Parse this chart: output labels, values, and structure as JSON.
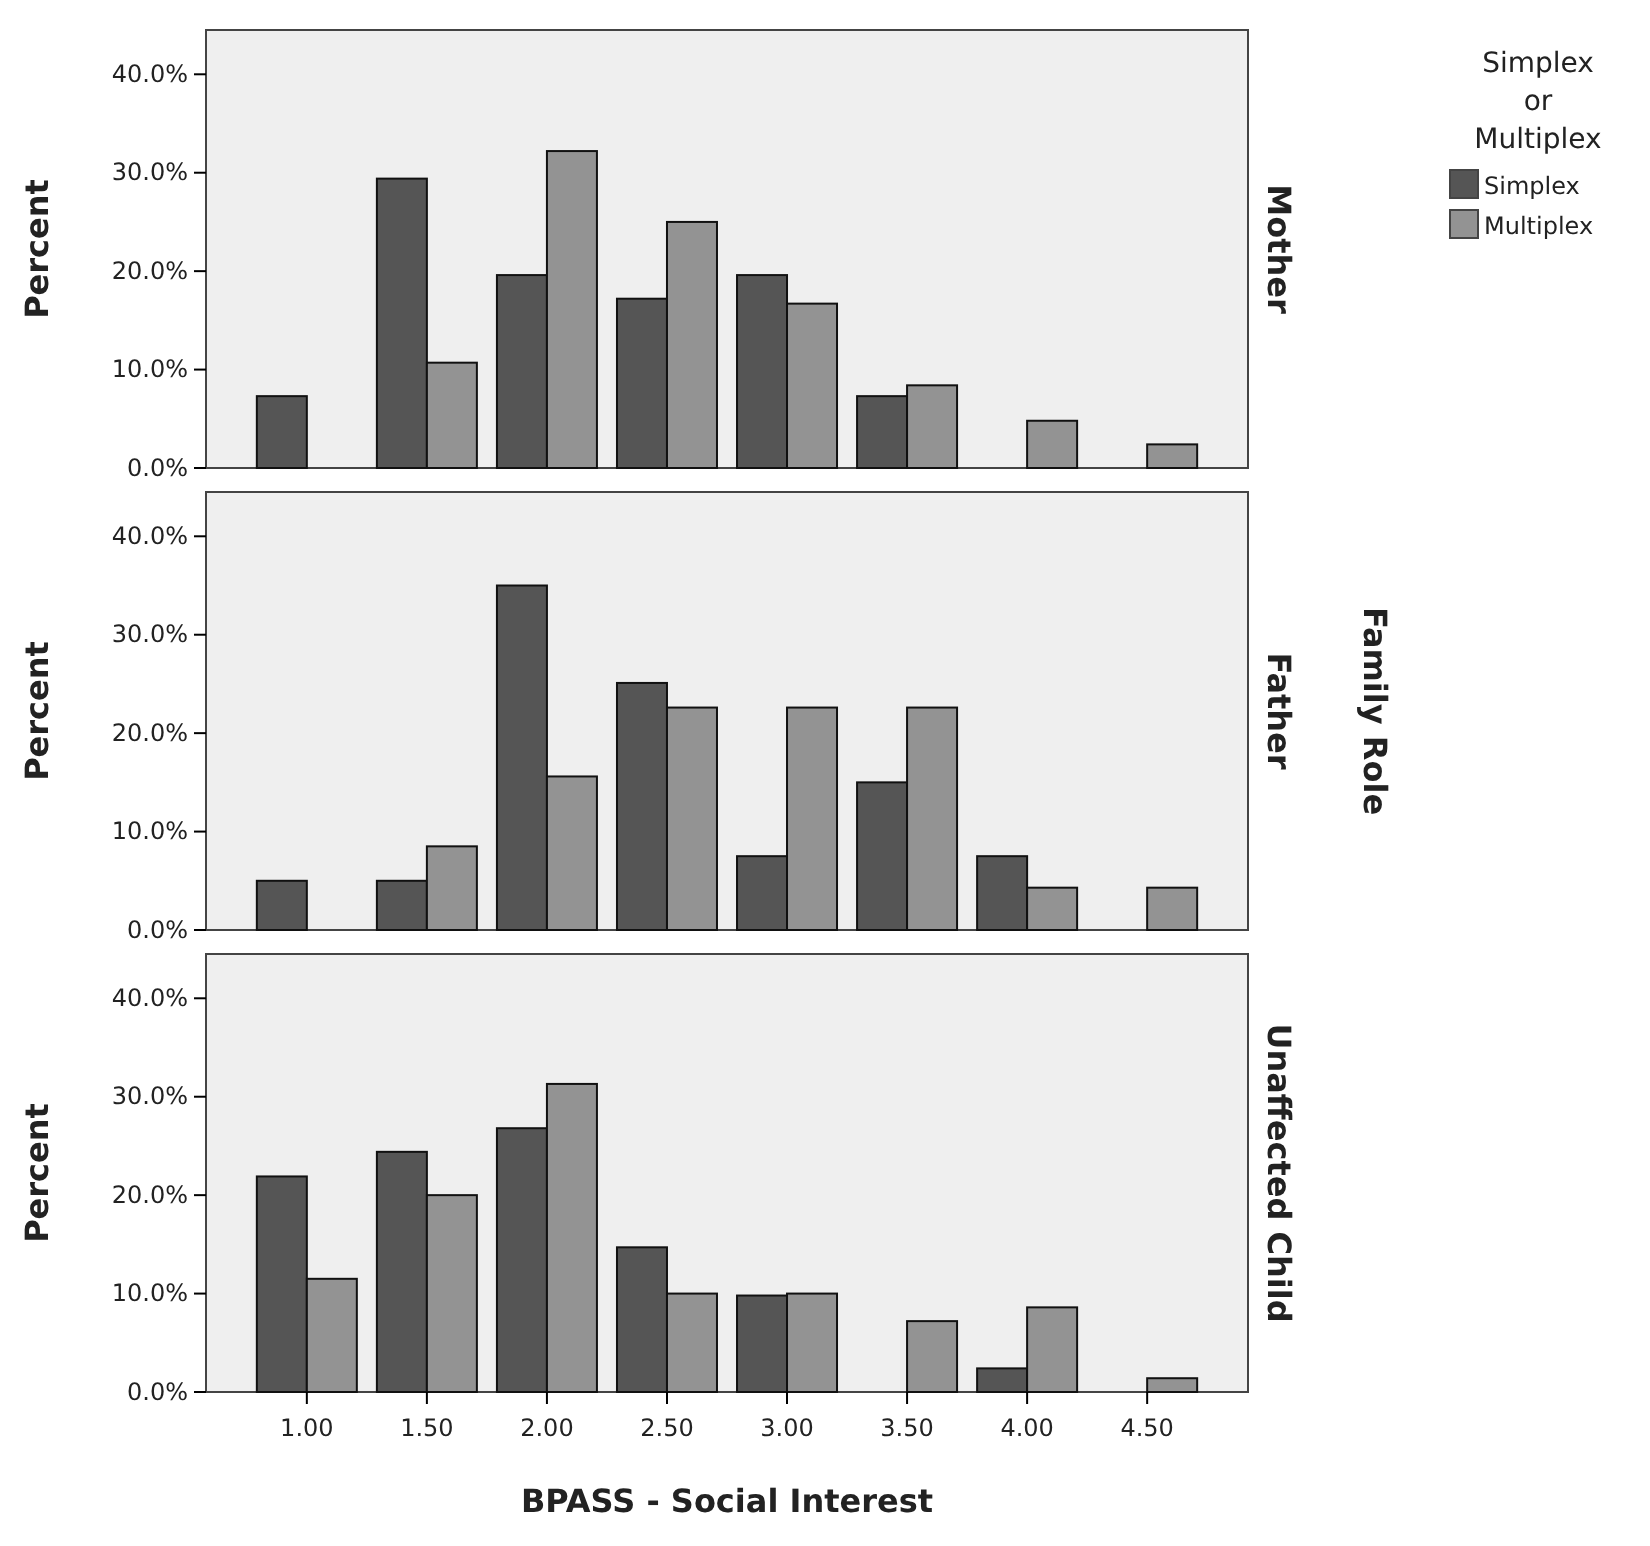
{
  "chart_data": [
    {
      "type": "bar",
      "title": "Mother",
      "ylabel": "Percent",
      "legend_title": "Simplex or Multiplex",
      "legend": "right",
      "tick_labels": "y",
      "categories": [
        "1.00",
        "1.50",
        "2.00",
        "2.50",
        "3.00",
        "3.50",
        "4.00",
        "4.50"
      ],
      "ylim": [
        0,
        44.5
      ],
      "yticks": [
        {
          "value": 0,
          "label": "0.0%"
        },
        {
          "value": 10,
          "label": "10.0%"
        },
        {
          "value": 20,
          "label": "20.0%"
        },
        {
          "value": 30,
          "label": "30.0%"
        },
        {
          "value": 40,
          "label": "40.0%"
        }
      ],
      "series": [
        {
          "name": "Simplex",
          "color": "#555555",
          "values": [
            7.3,
            29.4,
            19.6,
            17.2,
            19.6,
            7.3,
            0,
            0
          ]
        },
        {
          "name": "Multiplex",
          "color": "#939393",
          "values": [
            0,
            10.7,
            32.2,
            25.0,
            16.7,
            8.4,
            4.8,
            2.4
          ]
        }
      ]
    },
    {
      "type": "bar",
      "title": "Father",
      "ylabel": "Percent",
      "y2label": "Family Role",
      "tick_labels": "y",
      "categories": [
        "1.00",
        "1.50",
        "2.00",
        "2.50",
        "3.00",
        "3.50",
        "4.00",
        "4.50"
      ],
      "ylim": [
        0,
        44.5
      ],
      "yticks": [
        {
          "value": 0,
          "label": "0.0%"
        },
        {
          "value": 10,
          "label": "10.0%"
        },
        {
          "value": 20,
          "label": "20.0%"
        },
        {
          "value": 30,
          "label": "30.0%"
        },
        {
          "value": 40,
          "label": "40.0%"
        }
      ],
      "series": [
        {
          "color": "#555555",
          "values": [
            5.0,
            5.0,
            35.0,
            25.1,
            7.5,
            15.0,
            7.5,
            0
          ]
        },
        {
          "color": "#939393",
          "values": [
            0,
            8.5,
            15.6,
            22.6,
            22.6,
            22.6,
            4.3,
            4.3
          ]
        }
      ]
    },
    {
      "type": "bar",
      "title": "Unaffected Child",
      "ylabel": "Percent",
      "xlabel": "BPASS - Social Interest",
      "categories": [
        "1.00",
        "1.50",
        "2.00",
        "2.50",
        "3.00",
        "3.50",
        "4.00",
        "4.50"
      ],
      "ylim": [
        0,
        44.5
      ],
      "yticks": [
        {
          "value": 0,
          "label": "0.0%"
        },
        {
          "value": 10,
          "label": "10.0%"
        },
        {
          "value": 20,
          "label": "20.0%"
        },
        {
          "value": 30,
          "label": "30.0%"
        },
        {
          "value": 40,
          "label": "40.0%"
        }
      ],
      "series": [
        {
          "color": "#555555",
          "values": [
            21.9,
            24.4,
            26.8,
            14.7,
            9.8,
            0,
            2.4,
            0
          ]
        },
        {
          "color": "#939393",
          "values": [
            11.5,
            20.0,
            31.3,
            10.0,
            10.0,
            7.2,
            8.6,
            1.4
          ]
        }
      ]
    }
  ]
}
